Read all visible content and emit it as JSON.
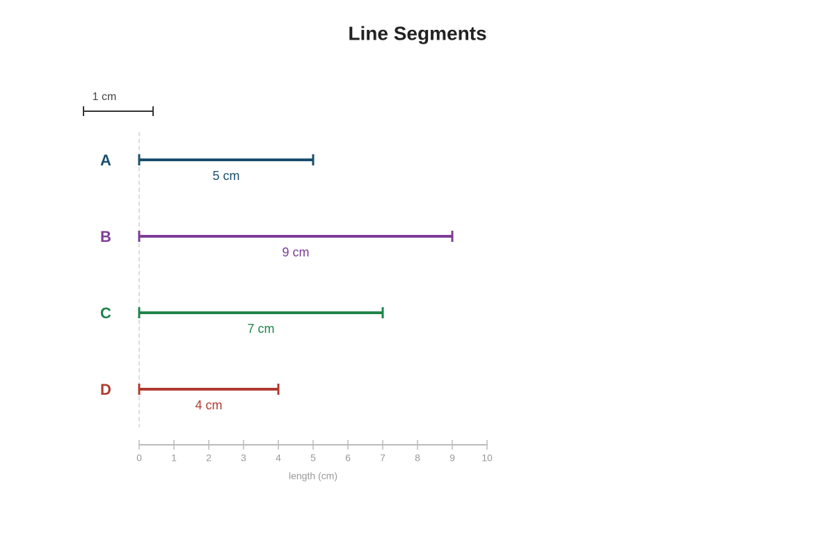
{
  "chart_data": {
    "type": "segment",
    "title": "Line Segments",
    "scale_label": "1 cm",
    "categories": [
      "A",
      "B",
      "C",
      "D"
    ],
    "values": [
      5,
      9,
      7,
      4
    ],
    "value_labels": [
      "5 cm",
      "9 cm",
      "7 cm",
      "4 cm"
    ],
    "colors": [
      "#1a4e6e",
      "#7d3c98",
      "#1e8449",
      "#b03a2e"
    ],
    "xlim": [
      0,
      10
    ],
    "xticks": [
      0,
      1,
      2,
      3,
      4,
      5,
      6,
      7,
      8,
      9,
      10
    ],
    "xlabel": "length (cm)"
  }
}
